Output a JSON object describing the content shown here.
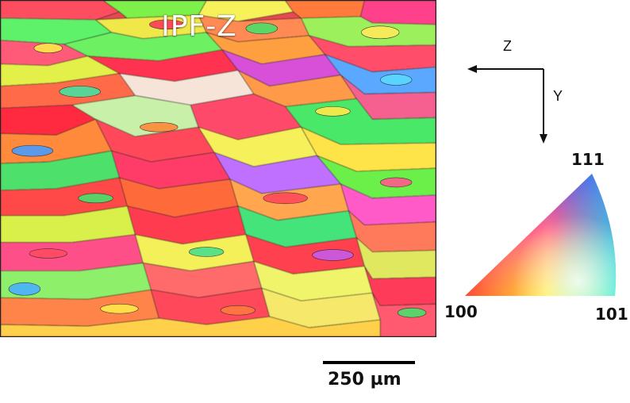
{
  "map": {
    "title": "IPF-Z"
  },
  "axes": {
    "horizontal_label": "Z",
    "vertical_label": "Y"
  },
  "ipf_key": {
    "corner_top": "111",
    "corner_left": "100",
    "corner_right": "101",
    "colors": {
      "100": "#ff0000",
      "101": "#00ff00",
      "111": "#0000ff"
    }
  },
  "scale_bar": {
    "label": "250 µm"
  }
}
